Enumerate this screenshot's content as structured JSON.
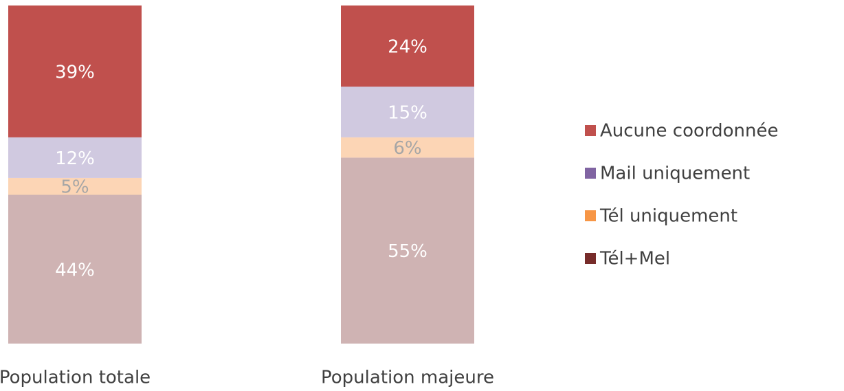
{
  "chart_data": {
    "type": "stacked_bar",
    "categories": [
      "Population totale",
      "Population majeure"
    ],
    "ylim": [
      0,
      100
    ],
    "series": [
      {
        "name": "Tél+Mel",
        "color": "#772c2a",
        "fill": "#cfb3b3",
        "label_color": "#ffffff",
        "values": [
          44,
          55
        ],
        "value_labels": [
          "44%",
          "55%"
        ]
      },
      {
        "name": "Tél uniquement",
        "color": "#f79646",
        "fill": "#fcd5b5",
        "label_color": "#a6a6a6",
        "values": [
          5,
          6
        ],
        "value_labels": [
          "5%",
          "6%"
        ]
      },
      {
        "name": "Mail uniquement",
        "color": "#8064a2",
        "fill": "#d0c9e0",
        "label_color": "#ffffff",
        "values": [
          12,
          15
        ],
        "value_labels": [
          "12%",
          "15%"
        ]
      },
      {
        "name": "Aucune coordonnée",
        "color": "#c0504d",
        "fill": "#c0504d",
        "label_color": "#ffffff",
        "values": [
          39,
          24
        ],
        "value_labels": [
          "39%",
          "24%"
        ]
      }
    ],
    "legend": "right"
  }
}
